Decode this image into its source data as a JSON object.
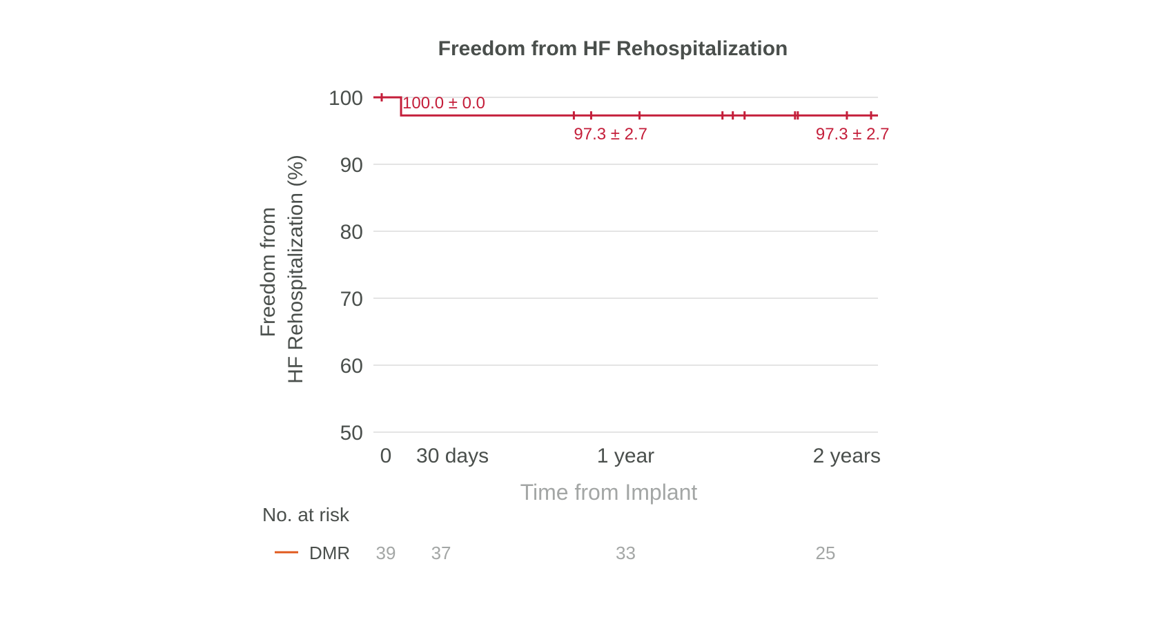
{
  "chart_data": {
    "type": "line",
    "title": "Freedom from HF Rehospitalization",
    "ylabel_lines": [
      "Freedom from",
      "HF Rehospitalization (%)"
    ],
    "xlabel": "Time from Implant",
    "ylim": [
      50,
      100
    ],
    "xlim": [
      0,
      730
    ],
    "yticks": [
      50,
      60,
      70,
      80,
      90,
      100
    ],
    "xticks": [
      {
        "value": 0,
        "label": "0"
      },
      {
        "value": 30,
        "label": "30 days"
      },
      {
        "value": 365,
        "label": "1 year"
      },
      {
        "value": 730,
        "label": "2 years"
      }
    ],
    "grid": true,
    "series": [
      {
        "name": "DMR",
        "color": "#c41e3a",
        "steps": [
          {
            "x": 0,
            "y": 100.0
          },
          {
            "x": 30,
            "y": 97.3
          },
          {
            "x": 730,
            "y": 97.3
          }
        ],
        "censor_x": [
          12,
          290,
          315,
          385,
          505,
          520,
          537,
          610,
          614,
          685,
          720
        ]
      }
    ],
    "annotations": [
      {
        "x": 32,
        "y": 100.0,
        "text": "100.0 ± 0.0"
      },
      {
        "x": 290,
        "y": 97.3,
        "text": "97.3 ± 2.7"
      },
      {
        "x": 620,
        "y": 97.3,
        "text": "97.3 ± 2.7"
      }
    ],
    "risk_table": {
      "title": "No. at risk",
      "rows": [
        {
          "name": "DMR",
          "color": "#e05a1e",
          "counts": [
            {
              "x": 0,
              "value": "39"
            },
            {
              "x": 30,
              "value": "37"
            },
            {
              "x": 365,
              "value": "33"
            },
            {
              "x": 730,
              "value": "25"
            }
          ]
        }
      ]
    }
  }
}
